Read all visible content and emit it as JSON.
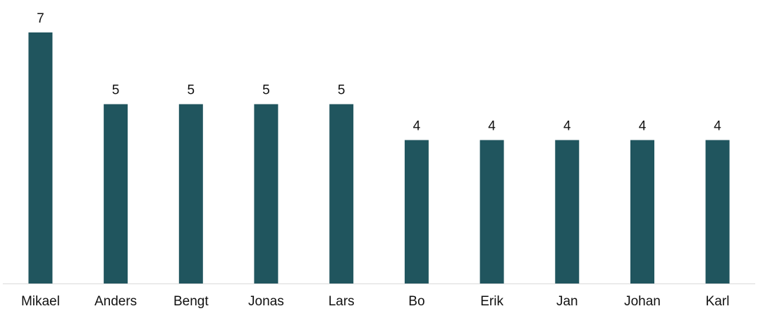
{
  "chart_data": {
    "type": "bar",
    "title": "",
    "xlabel": "",
    "ylabel": "",
    "categories": [
      "Mikael",
      "Anders",
      "Bengt",
      "Jonas",
      "Lars",
      "Bo",
      "Erik",
      "Jan",
      "Johan",
      "Karl"
    ],
    "values": [
      7,
      5,
      5,
      5,
      5,
      4,
      4,
      4,
      4,
      4
    ],
    "ylim": [
      0,
      7
    ],
    "grid": false,
    "legend": "none",
    "data_labels": true,
    "bar_color": "#20555e",
    "axis_color": "#d9d9d9"
  }
}
